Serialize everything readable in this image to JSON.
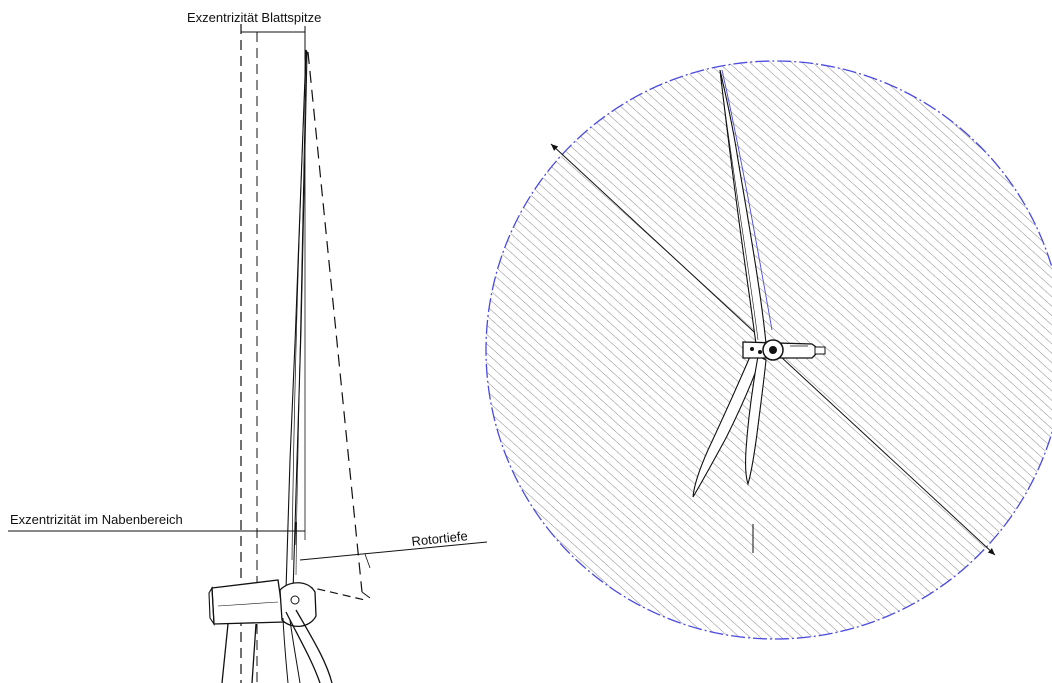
{
  "labels": {
    "tip_eccentricity": "Exzentrizität Blattspitze",
    "hub_eccentricity": "Exzentrizität im Nabenbereich",
    "rotor_depth": "Rotortiefe"
  },
  "colors": {
    "line": "#111111",
    "rotor_outline": "#4a4ae0",
    "hatch": "#8a8a8a",
    "background": "#ffffff"
  }
}
